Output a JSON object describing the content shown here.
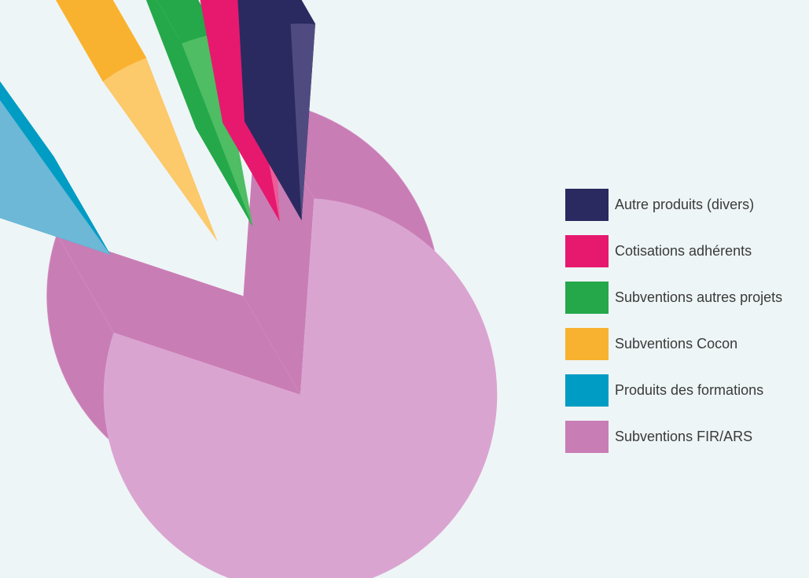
{
  "chart_data": {
    "type": "pie",
    "style": "3d exploded",
    "title": "",
    "legend_position": "right",
    "series": [
      {
        "name": "Autre produits (divers)",
        "value": 2,
        "color": "#2a2a60",
        "color_side": "#4f4b80"
      },
      {
        "name": "Cotisations adhérents",
        "value": 2,
        "color": "#e6196f",
        "color_side": "#ee5b97"
      },
      {
        "name": "Subventions autres projets",
        "value": 3,
        "color": "#24a84a",
        "color_side": "#4ebd63"
      },
      {
        "name": "Subventions Cocon",
        "value": 4,
        "color": "#f9b22f",
        "color_side": "#fcc96b"
      },
      {
        "name": "Produits des formations",
        "value": 10,
        "color": "#009cc4",
        "color_side": "#6cb8d6"
      },
      {
        "name": "Subventions FIR/ARS",
        "value": 79,
        "color": "#c97db5",
        "color_side": "#daa4d1"
      }
    ]
  }
}
